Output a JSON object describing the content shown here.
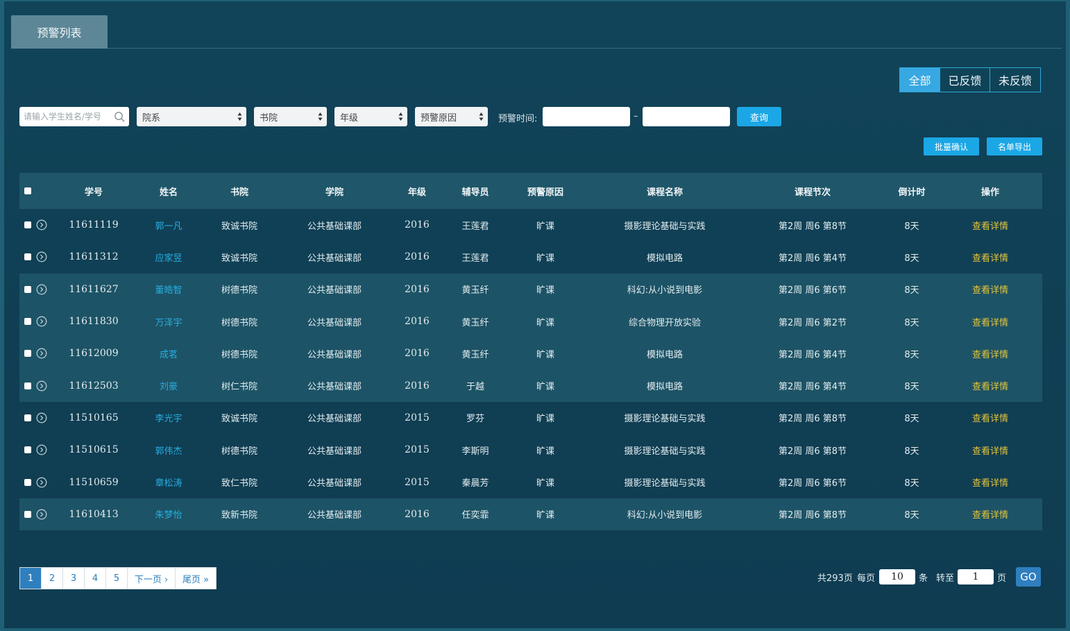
{
  "tab": {
    "title": "预警列表"
  },
  "filter_buttons": [
    "全部",
    "已反馈",
    "未反馈"
  ],
  "search": {
    "placeholder": "请输入学生姓名/学号"
  },
  "selects": {
    "dept": "院系",
    "college": "书院",
    "grade": "年级",
    "reason": "预警原因"
  },
  "time_label": "预警时间:",
  "dash": "–",
  "query_button": "查询",
  "actions": {
    "batch_confirm": "批量确认",
    "export": "名单导出"
  },
  "columns": [
    "学号",
    "姓名",
    "书院",
    "学院",
    "年级",
    "辅导员",
    "预警原因",
    "课程名称",
    "课程节次",
    "倒计时",
    "操作"
  ],
  "rows": [
    {
      "id": "11611119",
      "name": "郭一凡",
      "college": "致诚书院",
      "school": "公共基础课部",
      "grade": "2016",
      "tutor": "王莲君",
      "reason": "旷课",
      "course": "摄影理论基础与实践",
      "session": "第2周 周6 第8节",
      "countdown": "8天",
      "op": "查看详情"
    },
    {
      "id": "11611312",
      "name": "应家昱",
      "college": "致诚书院",
      "school": "公共基础课部",
      "grade": "2016",
      "tutor": "王莲君",
      "reason": "旷课",
      "course": "模拟电路",
      "session": "第2周 周6 第4节",
      "countdown": "8天",
      "op": "查看详情"
    },
    {
      "id": "11611627",
      "name": "董皓智",
      "college": "树德书院",
      "school": "公共基础课部",
      "grade": "2016",
      "tutor": "黄玉纤",
      "reason": "旷课",
      "course": "科幻:从小说到电影",
      "session": "第2周 周6 第6节",
      "countdown": "8天",
      "op": "查看详情"
    },
    {
      "id": "11611830",
      "name": "万泽宇",
      "college": "树德书院",
      "school": "公共基础课部",
      "grade": "2016",
      "tutor": "黄玉纤",
      "reason": "旷课",
      "course": "综合物理开放实验",
      "session": "第2周 周6 第2节",
      "countdown": "8天",
      "op": "查看详情"
    },
    {
      "id": "11612009",
      "name": "成茗",
      "college": "树德书院",
      "school": "公共基础课部",
      "grade": "2016",
      "tutor": "黄玉纤",
      "reason": "旷课",
      "course": "模拟电路",
      "session": "第2周 周6 第4节",
      "countdown": "8天",
      "op": "查看详情"
    },
    {
      "id": "11612503",
      "name": "刘豪",
      "college": "树仁书院",
      "school": "公共基础课部",
      "grade": "2016",
      "tutor": "于越",
      "reason": "旷课",
      "course": "模拟电路",
      "session": "第2周 周6 第4节",
      "countdown": "8天",
      "op": "查看详情"
    },
    {
      "id": "11510165",
      "name": "李光宇",
      "college": "致诚书院",
      "school": "公共基础课部",
      "grade": "2015",
      "tutor": "罗芬",
      "reason": "旷课",
      "course": "摄影理论基础与实践",
      "session": "第2周 周6 第8节",
      "countdown": "8天",
      "op": "查看详情"
    },
    {
      "id": "11510615",
      "name": "郭伟杰",
      "college": "树德书院",
      "school": "公共基础课部",
      "grade": "2015",
      "tutor": "李斯明",
      "reason": "旷课",
      "course": "摄影理论基础与实践",
      "session": "第2周 周6 第8节",
      "countdown": "8天",
      "op": "查看详情"
    },
    {
      "id": "11510659",
      "name": "章松涛",
      "college": "致仁书院",
      "school": "公共基础课部",
      "grade": "2015",
      "tutor": "秦晨芳",
      "reason": "旷课",
      "course": "摄影理论基础与实践",
      "session": "第2周 周6 第6节",
      "countdown": "8天",
      "op": "查看详情"
    },
    {
      "id": "11610413",
      "name": "朱梦怡",
      "college": "致新书院",
      "school": "公共基础课部",
      "grade": "2016",
      "tutor": "任奕霏",
      "reason": "旷课",
      "course": "科幻:从小说到电影",
      "session": "第2周 周6 第8节",
      "countdown": "8天",
      "op": "查看详情"
    }
  ],
  "pager": {
    "pages": [
      "1",
      "2",
      "3",
      "4",
      "5"
    ],
    "next": "下一页 ›",
    "last": "尾页 »",
    "total": "共293页",
    "per_page_label": "每页",
    "per_page": "10",
    "per_page_unit": "条",
    "goto_label": "转至",
    "goto_page": "1",
    "goto_unit": "页",
    "go": "GO"
  },
  "colors": {
    "accent": "#1ba7e6",
    "link_name": "#27aee0",
    "link_op": "#e4c43a"
  }
}
